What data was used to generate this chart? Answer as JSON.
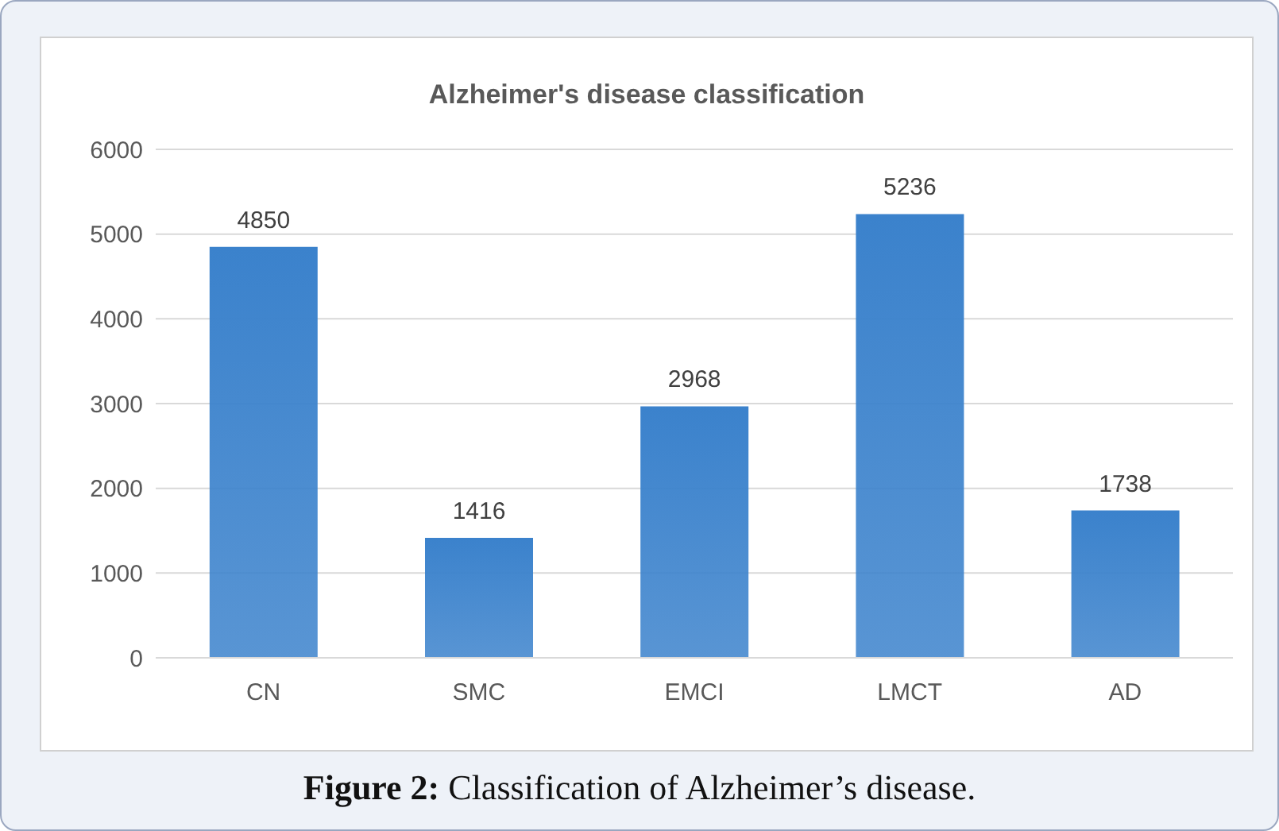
{
  "chart_data": {
    "type": "bar",
    "title": "Alzheimer's disease classification",
    "categories": [
      "CN",
      "SMC",
      "EMCI",
      "LMCT",
      "AD"
    ],
    "values": [
      4850,
      1416,
      2968,
      5236,
      1738
    ],
    "color": "#3b82cc",
    "ylim": [
      0,
      6000
    ],
    "yticks": [
      0,
      1000,
      2000,
      3000,
      4000,
      5000,
      6000
    ],
    "grid": "y",
    "data_labels": true,
    "annotations": [
      "Figure 2: Classification of Alzheimer’s disease."
    ]
  }
}
